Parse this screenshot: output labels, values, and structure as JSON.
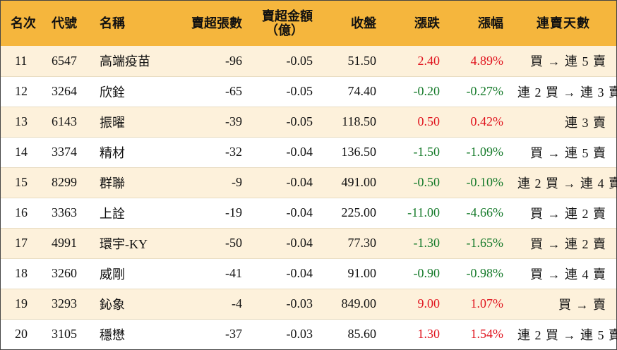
{
  "headers": {
    "rank": "名次",
    "code": "代號",
    "name": "名稱",
    "net_shares": "賣超張數",
    "net_amount_line1": "賣超金額",
    "net_amount_line2": "（億）",
    "close": "收盤",
    "change": "漲跌",
    "pct": "漲幅",
    "streak": "連賣天數"
  },
  "rows": [
    {
      "rank": "11",
      "code": "6547",
      "name": "高端疫苗",
      "net_shares": "-96",
      "net_amount": "-0.05",
      "close": "51.50",
      "change": "2.40",
      "pct": "4.89%",
      "dir": "up",
      "streak": "買 → 連 5 賣"
    },
    {
      "rank": "12",
      "code": "3264",
      "name": "欣銓",
      "net_shares": "-65",
      "net_amount": "-0.05",
      "close": "74.40",
      "change": "-0.20",
      "pct": "-0.27%",
      "dir": "down",
      "streak": "連 2 買 → 連 3 賣"
    },
    {
      "rank": "13",
      "code": "6143",
      "name": "振曜",
      "net_shares": "-39",
      "net_amount": "-0.05",
      "close": "118.50",
      "change": "0.50",
      "pct": "0.42%",
      "dir": "up",
      "streak": "連 3 賣"
    },
    {
      "rank": "14",
      "code": "3374",
      "name": "精材",
      "net_shares": "-32",
      "net_amount": "-0.04",
      "close": "136.50",
      "change": "-1.50",
      "pct": "-1.09%",
      "dir": "down",
      "streak": "買 → 連 5 賣"
    },
    {
      "rank": "15",
      "code": "8299",
      "name": "群聯",
      "net_shares": "-9",
      "net_amount": "-0.04",
      "close": "491.00",
      "change": "-0.50",
      "pct": "-0.10%",
      "dir": "down",
      "streak": "連 2 買 → 連 4 賣"
    },
    {
      "rank": "16",
      "code": "3363",
      "name": "上詮",
      "net_shares": "-19",
      "net_amount": "-0.04",
      "close": "225.00",
      "change": "-11.00",
      "pct": "-4.66%",
      "dir": "down",
      "streak": "買 → 連 2 賣"
    },
    {
      "rank": "17",
      "code": "4991",
      "name": "環宇-KY",
      "net_shares": "-50",
      "net_amount": "-0.04",
      "close": "77.30",
      "change": "-1.30",
      "pct": "-1.65%",
      "dir": "down",
      "streak": "買 → 連 2 賣"
    },
    {
      "rank": "18",
      "code": "3260",
      "name": "威剛",
      "net_shares": "-41",
      "net_amount": "-0.04",
      "close": "91.00",
      "change": "-0.90",
      "pct": "-0.98%",
      "dir": "down",
      "streak": "買 → 連 4 賣"
    },
    {
      "rank": "19",
      "code": "3293",
      "name": "鈊象",
      "net_shares": "-4",
      "net_amount": "-0.03",
      "close": "849.00",
      "change": "9.00",
      "pct": "1.07%",
      "dir": "up",
      "streak": "買 → 賣"
    },
    {
      "rank": "20",
      "code": "3105",
      "name": "穩懋",
      "net_shares": "-37",
      "net_amount": "-0.03",
      "close": "85.60",
      "change": "1.30",
      "pct": "1.54%",
      "dir": "up",
      "streak": "連 2 買 → 連 5 賣"
    }
  ],
  "colors": {
    "header_bg": "#f5b63d",
    "row_odd_bg": "#fdf1db",
    "row_even_bg": "#ffffff",
    "up": "#e0141e",
    "down": "#157a2a"
  }
}
